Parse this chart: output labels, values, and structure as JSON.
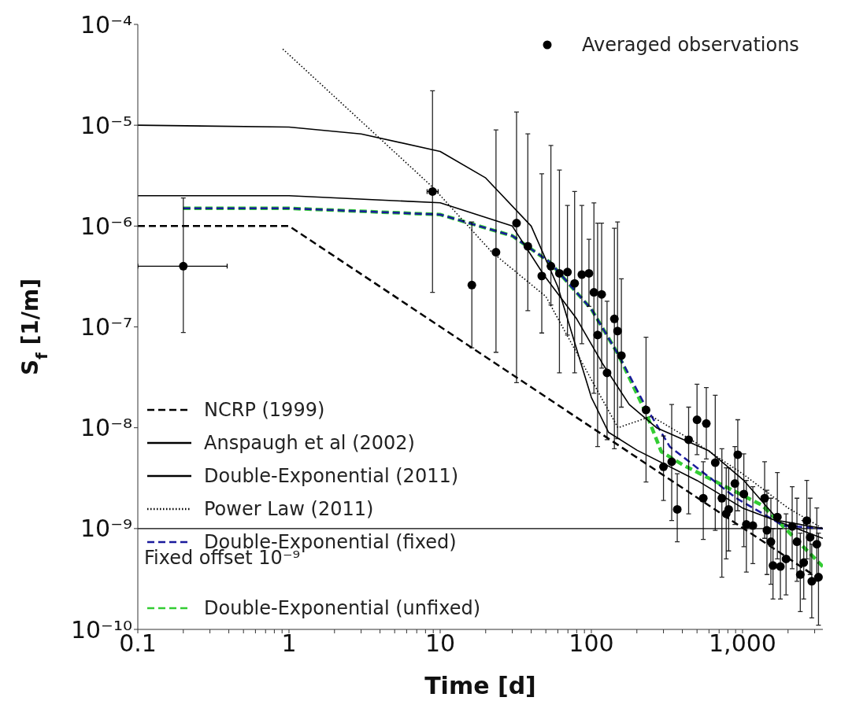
{
  "chart_data": {
    "type": "line",
    "xlabel": "Time [d]",
    "ylabel": "S$_{f}$ [1/m]",
    "log": "xy",
    "legend": "bottom left",
    "xlim": [
      0.1,
      3400
    ],
    "ylim": [
      1e-10,
      0.0001
    ],
    "xticks": [
      0.1,
      {
        "value": 0.2,
        "label": null
      },
      {
        "value": 0.3,
        "label": null
      },
      {
        "value": 0.4,
        "label": null
      },
      {
        "value": 0.5,
        "label": null
      },
      {
        "value": 0.6,
        "label": null
      },
      {
        "value": 0.7,
        "label": null
      },
      {
        "value": 0.8,
        "label": null
      },
      {
        "value": 0.9,
        "label": null
      },
      1,
      {
        "value": 2,
        "label": null
      },
      {
        "value": 3,
        "label": null
      },
      {
        "value": 4,
        "label": null
      },
      {
        "value": 5,
        "label": null
      },
      {
        "value": 6,
        "label": null
      },
      {
        "value": 7,
        "label": null
      },
      {
        "value": 8,
        "label": null
      },
      {
        "value": 9,
        "label": null
      },
      10,
      {
        "value": 20,
        "label": null
      },
      {
        "value": 30,
        "label": null
      },
      {
        "value": 40,
        "label": null
      },
      {
        "value": 50,
        "label": null
      },
      {
        "value": 60,
        "label": null
      },
      {
        "value": 70,
        "label": null
      },
      {
        "value": 80,
        "label": null
      },
      {
        "value": 90,
        "label": null
      },
      100,
      {
        "value": 200,
        "label": null
      },
      {
        "value": 300,
        "label": null
      },
      {
        "value": 400,
        "label": null
      },
      {
        "value": 500,
        "label": null
      },
      {
        "value": 600,
        "label": null
      },
      {
        "value": 700,
        "label": null
      },
      {
        "value": 800,
        "label": null
      },
      {
        "value": 900,
        "label": null
      },
      {
        "value": 1000,
        "label": "1,000"
      },
      {
        "value": 2000,
        "label": null
      },
      {
        "value": 3000,
        "label": null
      }
    ],
    "yticks": [
      {
        "value": 1e-10,
        "label": "10⁻¹⁰"
      },
      {
        "value": 1e-09,
        "label": "10⁻⁹"
      },
      {
        "value": 1e-08,
        "label": "10⁻⁸"
      },
      {
        "value": 1e-07,
        "label": "10⁻⁷"
      },
      {
        "value": 1e-06,
        "label": "10⁻⁶"
      },
      {
        "value": 1e-05,
        "label": "10⁻⁵"
      },
      {
        "value": 0.0001,
        "label": "10⁻⁴"
      }
    ],
    "ref_lines": [
      {
        "axis": "y",
        "value": 1e-09,
        "label": "Fixed offset 10⁻⁹",
        "color": "#000000",
        "line_style": "solid"
      }
    ],
    "series": [
      {
        "name": "Averaged observations",
        "type": "scatter",
        "marker": "circle",
        "color": "#000000",
        "x": [
          0.2,
          8.9,
          16.2,
          23.4,
          32,
          38,
          47,
          54,
          61.5,
          69.5,
          77.5,
          86.5,
          96.4,
          104,
          110,
          117,
          127,
          142,
          149,
          158,
          230,
          300,
          340,
          370,
          440,
          500,
          576,
          550,
          660,
          730,
          780,
          810,
          930,
          890,
          1020,
          1060,
          1170,
          1400,
          1450,
          1540,
          1590,
          1700,
          1780,
          1940,
          2130,
          2290,
          2410,
          2540,
          2660,
          2800,
          2870,
          3100,
          3180
        ],
        "values": [
          4e-07,
          2.2e-06,
          2.6e-07,
          5.5e-07,
          1.07e-06,
          6.3e-07,
          3.2e-07,
          4e-07,
          3.4e-07,
          3.5e-07,
          2.7e-07,
          3.3e-07,
          3.4e-07,
          2.2e-07,
          8.3e-08,
          2.1e-07,
          3.5e-08,
          1.2e-07,
          9.1e-08,
          5.2e-08,
          1.5e-08,
          4.1e-09,
          4.6e-09,
          1.55e-09,
          7.6e-09,
          1.2e-08,
          1.1e-08,
          2e-09,
          4.5e-09,
          2e-09,
          1.4e-09,
          1.55e-09,
          5.4e-09,
          2.8e-09,
          2.2e-09,
          1.1e-09,
          1.07e-09,
          2e-09,
          9.6e-10,
          7.4e-10,
          4.3e-10,
          1.3e-09,
          4.2e-10,
          5e-10,
          1.05e-09,
          7.4e-10,
          3.5e-10,
          4.6e-10,
          1.2e-09,
          8.2e-10,
          3e-10,
          7e-10,
          3.3e-10
        ],
        "errors": [
          [
            8.8e-08,
            1.9e-06
          ],
          [
            2.2e-07,
            2.2e-05
          ],
          [
            6.2e-08,
            1.1e-06
          ],
          [
            5.6e-08,
            9e-06
          ],
          [
            2.8e-08,
            1.35e-05
          ],
          [
            1.45e-07,
            8.2e-06
          ],
          [
            8.7e-08,
            3.3e-06
          ],
          [
            1.65e-07,
            6.3e-06
          ],
          [
            3.5e-08,
            3.6e-06
          ],
          [
            8.3e-08,
            1.6e-06
          ],
          [
            3.5e-08,
            2.2e-06
          ],
          [
            6.8e-08,
            1.6e-06
          ],
          [
            1.6e-07,
            7.4e-07
          ],
          [
            2.2e-08,
            1.7e-06
          ],
          [
            6.5e-09,
            1.07e-06
          ],
          [
            3.9e-08,
            1.07e-06
          ],
          [
            7.6e-09,
            1.8e-07
          ],
          [
            6.2e-09,
            9.5e-07
          ],
          [
            7.8e-09,
            1.1e-06
          ],
          [
            1.6e-08,
            3e-07
          ],
          [
            2.9e-09,
            7.9e-08
          ],
          [
            1.9e-09,
            8.3e-09
          ],
          [
            1.2e-09,
            1.7e-08
          ],
          [
            7.4e-10,
            3.5e-09
          ],
          [
            1.4e-09,
            1.6e-08
          ],
          [
            5.4e-09,
            2.7e-08
          ],
          [
            4.9e-09,
            2.5e-08
          ],
          [
            7.8e-10,
            4.6e-09
          ],
          [
            9.6e-10,
            2.1e-08
          ],
          [
            3.3e-10,
            6.2e-09
          ],
          [
            5e-10,
            4e-09
          ],
          [
            6e-10,
            4e-09
          ],
          [
            1.5e-09,
            1.2e-08
          ],
          [
            1.1e-09,
            6.5e-09
          ],
          [
            6.6e-10,
            5.5e-09
          ],
          [
            3.7e-10,
            3e-09
          ],
          [
            4.5e-10,
            2.6e-09
          ],
          [
            8e-10,
            4.6e-09
          ],
          [
            3.5e-10,
            2.4e-09
          ],
          [
            2.8e-10,
            2e-09
          ],
          [
            2e-10,
            1e-09
          ],
          [
            5e-10,
            3.6e-09
          ],
          [
            2e-10,
            1e-09
          ],
          [
            2.2e-10,
            1.4e-09
          ],
          [
            4e-10,
            2.6e-09
          ],
          [
            3e-10,
            2e-09
          ],
          [
            1.5e-10,
            9e-10
          ],
          [
            2e-10,
            1.2e-09
          ],
          [
            5e-10,
            3e-09
          ],
          [
            3.5e-10,
            2e-09
          ],
          [
            1.3e-10,
            7e-10
          ],
          [
            3e-10,
            1.6e-09
          ],
          [
            1.1e-10,
            9e-10
          ]
        ],
        "xerrors": [
          [
            0.1,
            0.39
          ],
          [
            8.2,
            9.7
          ],
          null,
          null,
          null,
          null,
          null,
          null,
          null,
          null,
          null,
          null,
          null,
          null,
          null,
          null,
          null,
          null,
          null,
          null,
          null,
          null,
          null,
          null,
          null,
          null,
          null,
          null,
          null,
          null,
          null,
          null,
          null,
          null,
          null,
          null,
          null,
          null,
          null,
          null,
          null,
          null,
          null,
          null,
          null,
          null,
          null,
          null,
          null,
          null,
          null,
          null,
          null
        ]
      },
      {
        "name": "NCRP (1999)",
        "line_style": "dashed",
        "color": "#000000",
        "x": [
          0.1,
          1,
          3400
        ],
        "values": [
          1e-06,
          1e-06,
          3e-10
        ]
      },
      {
        "name": "Anspaugh et al (2002)",
        "line_style": "solid",
        "color": "#000000",
        "x": [
          0.1,
          1,
          3,
          10,
          20,
          40,
          60,
          80,
          100,
          130,
          200,
          500,
          1000,
          3400
        ],
        "values": [
          1e-05,
          9.6e-06,
          8.2e-06,
          5.5e-06,
          3e-06,
          1e-06,
          2.5e-07,
          6e-08,
          2e-08,
          9e-09,
          6e-09,
          3e-09,
          1.6e-09,
          8e-10
        ]
      },
      {
        "name": "Double-Exponential (2011)",
        "line_style": "solid",
        "color": "#000000",
        "x": [
          0.1,
          1,
          10,
          30,
          49,
          80,
          120,
          178,
          270,
          600,
          1020,
          1740,
          3400
        ],
        "values": [
          2e-06,
          2e-06,
          1.7e-06,
          1e-06,
          3.2e-07,
          1.2e-07,
          4.2e-08,
          1.7e-08,
          1e-08,
          5.9e-09,
          3e-09,
          1.2e-09,
          1e-09
        ]
      },
      {
        "name": "Power Law (2011)",
        "line_style": "dotted",
        "color": "#000000",
        "x": [
          0.91,
          9,
          22,
          50,
          100,
          150,
          250,
          500,
          1000,
          2000,
          3400
        ],
        "values": [
          5.7e-05,
          2.4e-06,
          5.5e-07,
          2e-07,
          3e-08,
          1e-08,
          1.3e-08,
          7e-09,
          3.5e-09,
          1.6e-09,
          1e-09
        ]
      },
      {
        "name": "Double-Exponential (fixed)",
        "line_style": "dashed",
        "color": "#1a1a9c",
        "x": [
          0.2,
          1,
          10,
          30,
          53,
          100,
          151,
          230,
          330,
          910,
          1860,
          3400
        ],
        "values": [
          1.5e-06,
          1.5e-06,
          1.3e-06,
          8e-07,
          4.4e-07,
          1.5e-07,
          5.3e-08,
          1.6e-08,
          6.5e-09,
          2e-09,
          1.07e-09,
          1e-09
        ]
      },
      {
        "name": "Double-Exponential (unfixed)",
        "line_style": "dashed",
        "color": "#33cc33",
        "x": [
          0.2,
          1,
          10,
          30,
          53,
          100,
          151,
          230,
          290,
          400,
          1350,
          3400
        ],
        "values": [
          1.5e-06,
          1.5e-06,
          1.3e-06,
          8e-07,
          4.4e-07,
          1.5e-07,
          5.3e-08,
          1.4e-08,
          5.8e-09,
          4.3e-09,
          1.7e-09,
          4.2e-10
        ]
      }
    ]
  }
}
